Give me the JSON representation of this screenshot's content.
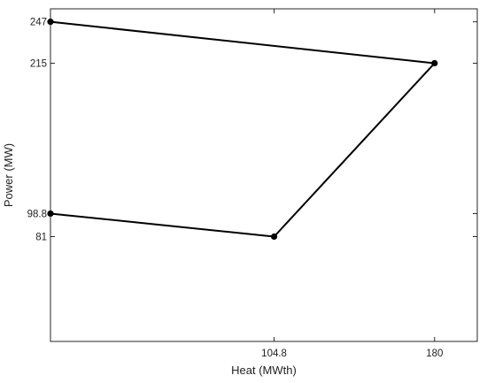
{
  "chart_data": {
    "type": "line",
    "title": "",
    "xlabel": "Heat (MWth)",
    "ylabel": "Power (MW)",
    "x_ticks": [
      104.8,
      180
    ],
    "x_tick_labels": [
      "104.8",
      "180"
    ],
    "y_ticks": [
      81,
      98.8,
      215,
      247
    ],
    "y_tick_labels": [
      "81",
      "98.8",
      "215",
      "247"
    ],
    "xlim": [
      0,
      200
    ],
    "ylim": [
      0,
      257
    ],
    "grid": false,
    "series": [
      {
        "x": [
          0,
          104.8,
          180,
          0
        ],
        "y": [
          98.8,
          81,
          215,
          247
        ],
        "color": "#000000",
        "marker": "circle"
      }
    ]
  }
}
